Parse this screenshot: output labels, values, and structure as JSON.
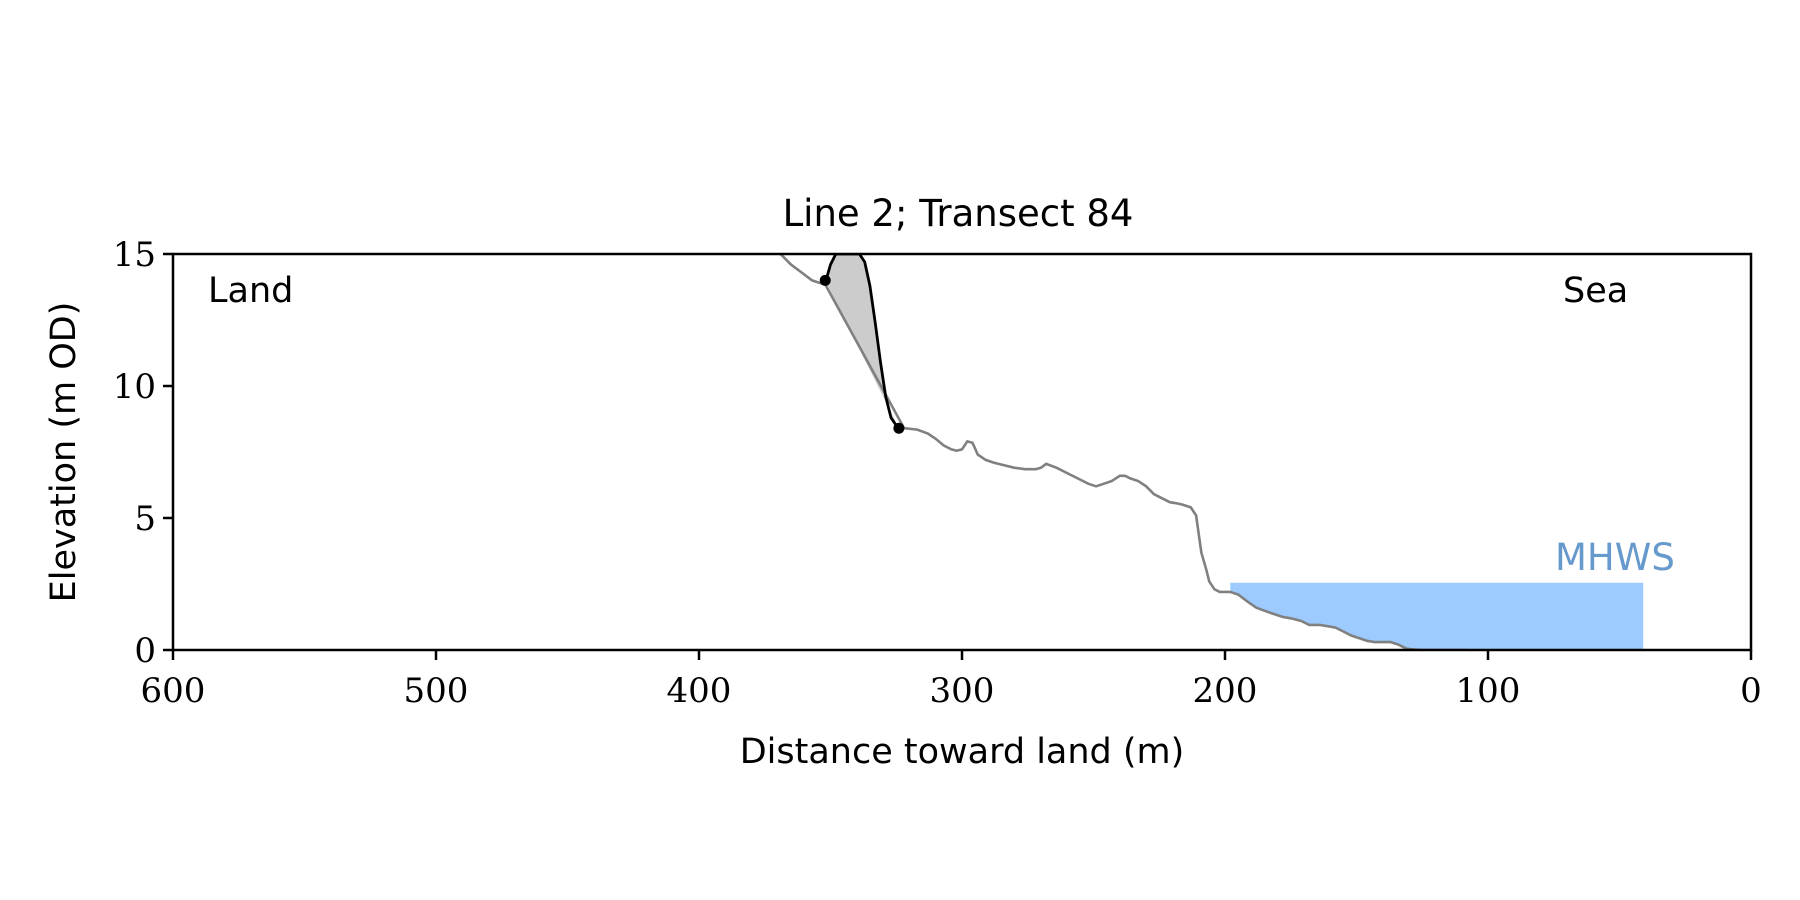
{
  "chart_data": {
    "type": "line",
    "title": "Line 2; Transect 84",
    "xlabel": "Distance toward land (m)",
    "ylabel": "Elevation (m OD)",
    "xlim": [
      600,
      0
    ],
    "ylim": [
      0,
      15
    ],
    "x_reversed": true,
    "xticks": [
      600,
      500,
      400,
      300,
      200,
      100,
      0
    ],
    "yticks": [
      0,
      5,
      10,
      15
    ],
    "grid": false,
    "legend": "none",
    "annotations": {
      "land": "Land",
      "sea": "Sea",
      "mhws_label": "MHWS"
    },
    "mhws": {
      "elevation": 2.55,
      "x_start": 198,
      "x_end": 41
    },
    "colors": {
      "profile": "#808080",
      "cliff": "#000000",
      "erosion_fill": "#cccccc",
      "water": "#9ecbff",
      "mhws_text": "#6699cc"
    },
    "series": [
      {
        "role": "profile",
        "x": [
          369,
          365,
          361,
          357,
          354,
          352,
          322,
          317,
          313,
          310,
          307,
          304,
          302,
          300,
          298,
          296,
          294,
          291,
          288,
          284,
          280,
          276,
          272,
          270,
          268,
          264,
          260,
          256,
          252,
          249,
          246,
          243,
          240,
          238,
          236,
          233,
          230,
          227,
          224,
          221,
          218,
          216,
          213,
          211,
          209,
          207,
          206,
          205,
          204,
          202,
          198,
          195,
          191,
          188,
          184,
          181,
          178,
          175,
          171,
          168,
          164,
          161,
          158,
          155,
          152,
          149,
          146,
          143,
          140,
          137,
          134,
          131,
          128,
          125,
          122,
          119,
          116,
          112,
          108
        ],
        "y": [
          15.0,
          14.6,
          14.3,
          14.0,
          13.9,
          13.85,
          8.4,
          8.35,
          8.2,
          8.0,
          7.75,
          7.6,
          7.55,
          7.6,
          7.9,
          7.85,
          7.4,
          7.2,
          7.1,
          7.0,
          6.9,
          6.85,
          6.85,
          6.9,
          7.05,
          6.9,
          6.7,
          6.5,
          6.3,
          6.2,
          6.3,
          6.4,
          6.6,
          6.6,
          6.5,
          6.4,
          6.2,
          5.9,
          5.75,
          5.6,
          5.55,
          5.5,
          5.4,
          5.1,
          3.7,
          3.0,
          2.6,
          2.45,
          2.3,
          2.2,
          2.2,
          2.1,
          1.8,
          1.6,
          1.45,
          1.35,
          1.25,
          1.2,
          1.1,
          0.95,
          0.95,
          0.9,
          0.85,
          0.7,
          0.55,
          0.45,
          0.35,
          0.3,
          0.3,
          0.3,
          0.2,
          0.05,
          0.02,
          0.0,
          0.0,
          0.0,
          0.0,
          0.0,
          0.0
        ]
      },
      {
        "role": "cliff",
        "x": [
          352,
          350,
          348,
          347,
          346,
          345,
          344,
          343,
          341,
          340,
          339,
          337,
          335,
          333,
          331,
          329,
          327,
          325,
          323,
          322
        ],
        "y": [
          13.9,
          14.6,
          15.0,
          15.0,
          15.0,
          15.0,
          15.0,
          15.0,
          15.0,
          15.0,
          15.0,
          14.7,
          13.8,
          12.4,
          10.9,
          9.6,
          8.8,
          8.5,
          8.4,
          8.4
        ]
      }
    ],
    "points": [
      {
        "x": 352,
        "y": 14.0
      },
      {
        "x": 324,
        "y": 8.4
      }
    ]
  }
}
